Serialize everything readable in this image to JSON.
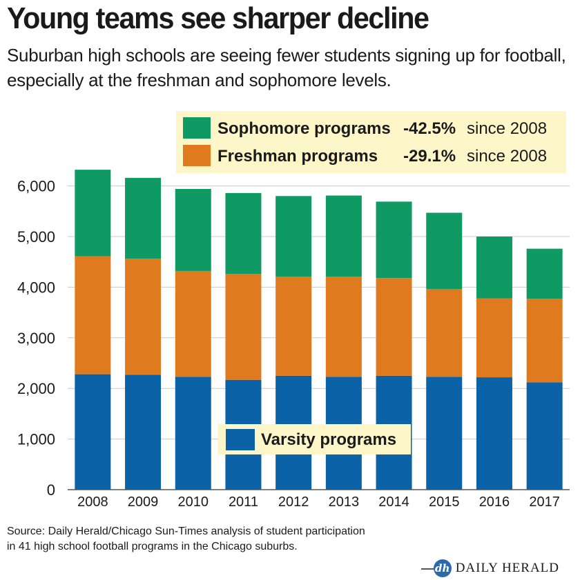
{
  "chart_data": {
    "type": "bar",
    "stacked": true,
    "title": "Young teams see sharper decline",
    "subtitle": "Suburban high schools are seeing fewer students signing up for football, especially at the freshman and sophomore levels.",
    "categories": [
      "2008",
      "2009",
      "2010",
      "2011",
      "2012",
      "2013",
      "2014",
      "2015",
      "2016",
      "2017"
    ],
    "series": [
      {
        "name": "Varsity programs",
        "color": "#0b62a6",
        "values": [
          2280,
          2270,
          2230,
          2170,
          2250,
          2230,
          2250,
          2230,
          2220,
          2120
        ]
      },
      {
        "name": "Freshman programs",
        "color": "#e07a1f",
        "values": [
          2330,
          2290,
          2090,
          2090,
          1960,
          1980,
          1930,
          1730,
          1560,
          1650
        ]
      },
      {
        "name": "Sophomore programs",
        "color": "#0f9a64",
        "values": [
          1710,
          1600,
          1620,
          1600,
          1590,
          1600,
          1510,
          1510,
          1220,
          990
        ]
      }
    ],
    "ylim": [
      0,
      6500
    ],
    "yticks": [
      0,
      1000,
      2000,
      3000,
      4000,
      5000,
      6000
    ],
    "ytick_labels": [
      "0",
      "1,000",
      "2,000",
      "3,000",
      "4,000",
      "5,000",
      "6,000"
    ],
    "grid": true,
    "legend": [
      {
        "series": "Sophomore programs",
        "change": "-42.5%",
        "note": "since 2008"
      },
      {
        "series": "Freshman programs",
        "change": "-29.1%",
        "note": "since 2008"
      },
      {
        "series": "Varsity programs",
        "change": "",
        "note": ""
      }
    ],
    "legend_bg": "#fcf6c8"
  },
  "source": {
    "line1": "Source: Daily Herald/Chicago Sun-Times analysis of student participation",
    "line2": "in 41 high school football programs in the Chicago suburbs."
  },
  "brand": {
    "badge": "dh",
    "name": "DAILY HERALD",
    "color": "#2b6aa8"
  }
}
